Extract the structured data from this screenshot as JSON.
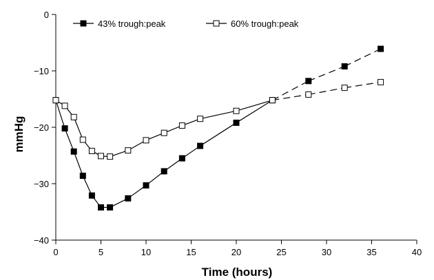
{
  "chart_data": {
    "type": "line",
    "xlabel": "Time (hours)",
    "ylabel": "mmHg",
    "xlim": [
      0,
      40
    ],
    "ylim": [
      -40,
      0
    ],
    "xticks": [
      0,
      5,
      10,
      15,
      20,
      25,
      30,
      35,
      40
    ],
    "yticks": [
      0,
      -10,
      -20,
      -30,
      -40
    ],
    "x_tick_labels": [
      "0",
      "5",
      "10",
      "15",
      "20",
      "25",
      "30",
      "35",
      "40"
    ],
    "y_tick_labels": [
      "0",
      "−10",
      "−20",
      "−30",
      "−40"
    ],
    "grid": false,
    "legend_position": "top",
    "series": [
      {
        "name": "43% trough:peak",
        "marker": "filled-square",
        "color": "#000000",
        "solid_through_x": 24,
        "points": [
          [
            0,
            -15.2
          ],
          [
            1,
            -20.2
          ],
          [
            2,
            -24.3
          ],
          [
            3,
            -28.6
          ],
          [
            4,
            -32.1
          ],
          [
            5,
            -34.2
          ],
          [
            6,
            -34.2
          ],
          [
            8,
            -32.6
          ],
          [
            10,
            -30.3
          ],
          [
            12,
            -27.8
          ],
          [
            14,
            -25.5
          ],
          [
            16,
            -23.3
          ],
          [
            20,
            -19.2
          ],
          [
            24,
            -15.2
          ],
          [
            28,
            -11.8
          ],
          [
            32,
            -9.2
          ],
          [
            36,
            -6.1
          ]
        ]
      },
      {
        "name": "60% trough:peak",
        "marker": "open-square",
        "color": "#000000",
        "solid_through_x": 24,
        "points": [
          [
            0,
            -15.2
          ],
          [
            1,
            -16.2
          ],
          [
            2,
            -18.2
          ],
          [
            3,
            -22.2
          ],
          [
            4,
            -24.2
          ],
          [
            5,
            -25.1
          ],
          [
            6,
            -25.2
          ],
          [
            8,
            -24.1
          ],
          [
            10,
            -22.3
          ],
          [
            12,
            -21.0
          ],
          [
            14,
            -19.7
          ],
          [
            16,
            -18.5
          ],
          [
            20,
            -17.1
          ],
          [
            24,
            -15.2
          ],
          [
            28,
            -14.2
          ],
          [
            32,
            -13.0
          ],
          [
            36,
            -12.0
          ]
        ]
      }
    ]
  }
}
